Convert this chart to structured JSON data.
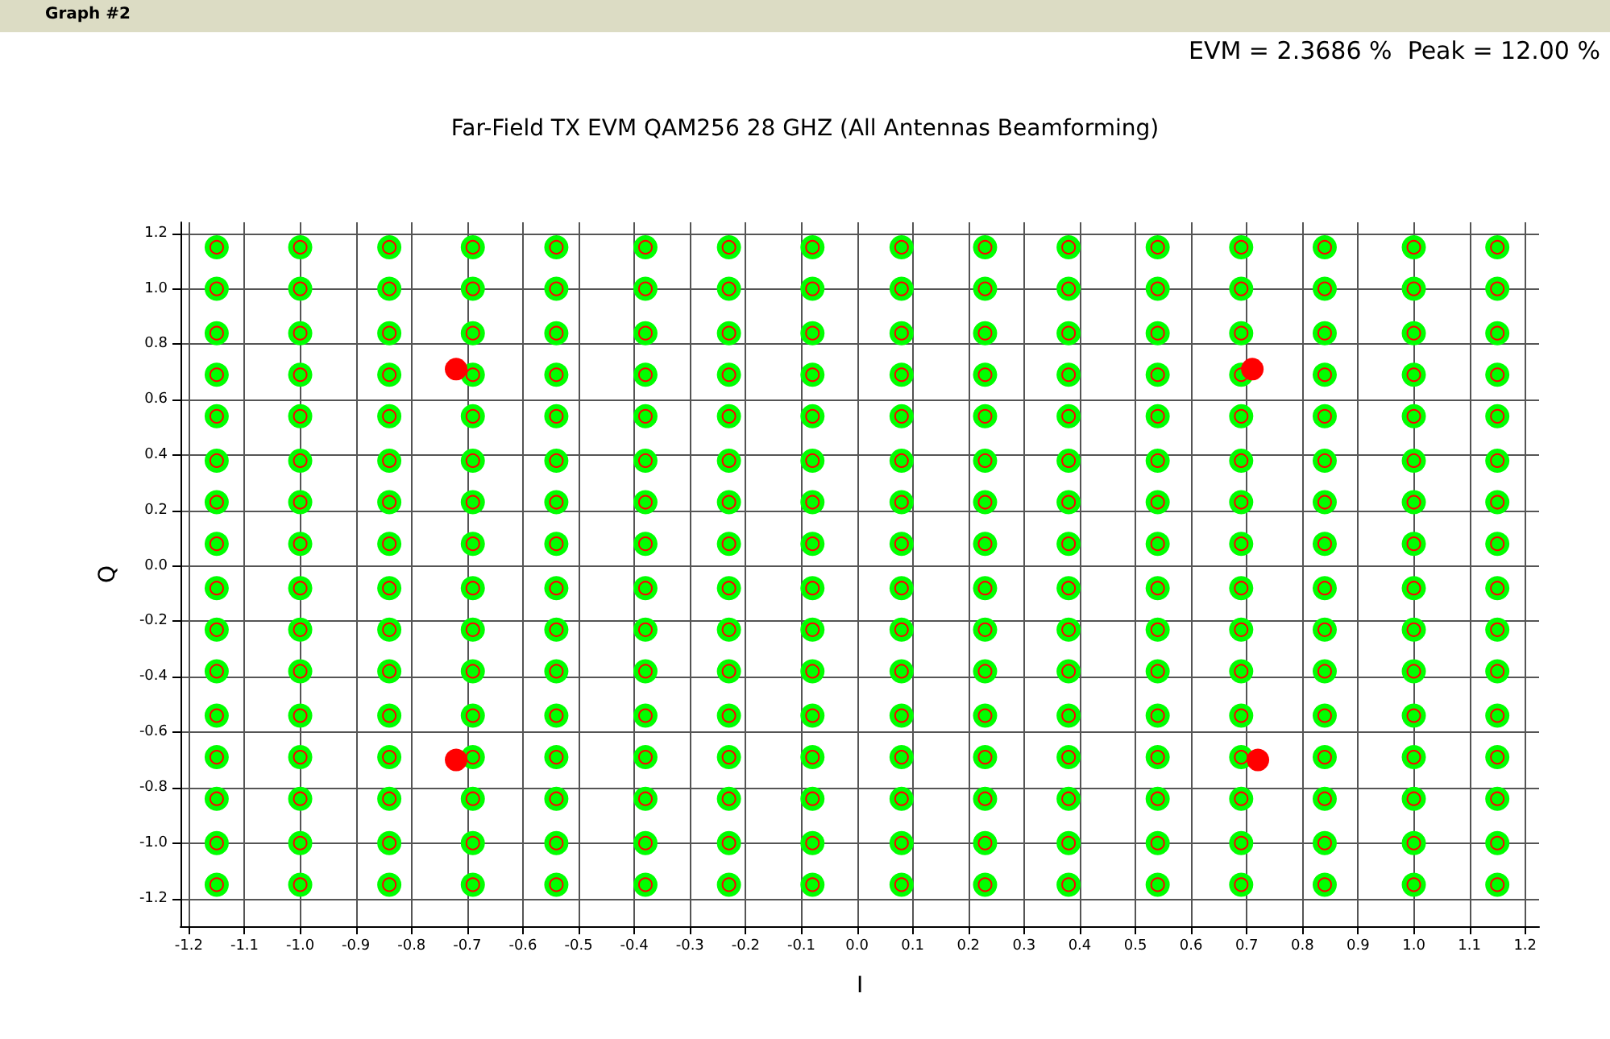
{
  "chart_data": {
    "type": "scatter",
    "title": "Far-Field TX EVM QAM256 28 GHZ (All Antennas Beamforming)",
    "xlabel": "I",
    "ylabel": "Q",
    "annotations": [
      "Graph #2",
      "EVM = 2.3686 %  Peak = 12.00 %"
    ],
    "xlim": [
      -1.215,
      1.225
    ],
    "ylim": [
      -1.3,
      1.24
    ],
    "xticks": [
      {
        "value": -1.2,
        "label": "-1.2"
      },
      {
        "value": -1.1,
        "label": "-1.1"
      },
      {
        "value": -1,
        "label": "-1.0"
      },
      {
        "value": -0.9,
        "label": "-0.9"
      },
      {
        "value": -0.8,
        "label": "-0.8"
      },
      {
        "value": -0.7,
        "label": "-0.7"
      },
      {
        "value": -0.6,
        "label": "-0.6"
      },
      {
        "value": -0.5,
        "label": "-0.5"
      },
      {
        "value": -0.4,
        "label": "-0.4"
      },
      {
        "value": -0.3,
        "label": "-0.3"
      },
      {
        "value": -0.2,
        "label": "-0.2"
      },
      {
        "value": -0.1,
        "label": "-0.1"
      },
      {
        "value": 0,
        "label": "0.0"
      },
      {
        "value": 0.1,
        "label": "0.1"
      },
      {
        "value": 0.2,
        "label": "0.2"
      },
      {
        "value": 0.3,
        "label": "0.3"
      },
      {
        "value": 0.4,
        "label": "0.4"
      },
      {
        "value": 0.5,
        "label": "0.5"
      },
      {
        "value": 0.6,
        "label": "0.6"
      },
      {
        "value": 0.7,
        "label": "0.7"
      },
      {
        "value": 0.8,
        "label": "0.8"
      },
      {
        "value": 0.9,
        "label": "0.9"
      },
      {
        "value": 1,
        "label": "1.0"
      },
      {
        "value": 1.1,
        "label": "1.1"
      },
      {
        "value": 1.2,
        "label": "1.2"
      }
    ],
    "yticks": [
      {
        "value": -1.2,
        "label": "-1.2"
      },
      {
        "value": -1,
        "label": "-1.0"
      },
      {
        "value": -0.8,
        "label": "-0.8"
      },
      {
        "value": -0.6,
        "label": "-0.6"
      },
      {
        "value": -0.4,
        "label": "-0.4"
      },
      {
        "value": -0.2,
        "label": "-0.2"
      },
      {
        "value": 0,
        "label": "0.0"
      },
      {
        "value": 0.2,
        "label": "0.2"
      },
      {
        "value": 0.4,
        "label": "0.4"
      },
      {
        "value": 0.6,
        "label": "0.6"
      },
      {
        "value": 0.8,
        "label": "0.8"
      },
      {
        "value": 1,
        "label": "1.0"
      },
      {
        "value": 1.2,
        "label": "1.2"
      }
    ],
    "grid": true,
    "marker": "circle",
    "series": [
      {
        "color": "#00ff00",
        "x": [
          -1.15,
          -1.0,
          -0.84,
          -0.69,
          -0.54,
          -0.38,
          -0.23,
          -0.08,
          0.08,
          0.23,
          0.38,
          0.54,
          0.69,
          0.84,
          1.0,
          1.15,
          -1.15,
          -1.0,
          -0.84,
          -0.69,
          -0.54,
          -0.38,
          -0.23,
          -0.08,
          0.08,
          0.23,
          0.38,
          0.54,
          0.69,
          0.84,
          1.0,
          1.15,
          -1.15,
          -1.0,
          -0.84,
          -0.69,
          -0.54,
          -0.38,
          -0.23,
          -0.08,
          0.08,
          0.23,
          0.38,
          0.54,
          0.69,
          0.84,
          1.0,
          1.15,
          -1.15,
          -1.0,
          -0.84,
          -0.69,
          -0.54,
          -0.38,
          -0.23,
          -0.08,
          0.08,
          0.23,
          0.38,
          0.54,
          0.69,
          0.84,
          1.0,
          1.15,
          -1.15,
          -1.0,
          -0.84,
          -0.69,
          -0.54,
          -0.38,
          -0.23,
          -0.08,
          0.08,
          0.23,
          0.38,
          0.54,
          0.69,
          0.84,
          1.0,
          1.15,
          -1.15,
          -1.0,
          -0.84,
          -0.69,
          -0.54,
          -0.38,
          -0.23,
          -0.08,
          0.08,
          0.23,
          0.38,
          0.54,
          0.69,
          0.84,
          1.0,
          1.15,
          -1.15,
          -1.0,
          -0.84,
          -0.69,
          -0.54,
          -0.38,
          -0.23,
          -0.08,
          0.08,
          0.23,
          0.38,
          0.54,
          0.69,
          0.84,
          1.0,
          1.15,
          -1.15,
          -1.0,
          -0.84,
          -0.69,
          -0.54,
          -0.38,
          -0.23,
          -0.08,
          0.08,
          0.23,
          0.38,
          0.54,
          0.69,
          0.84,
          1.0,
          1.15,
          -1.15,
          -1.0,
          -0.84,
          -0.69,
          -0.54,
          -0.38,
          -0.23,
          -0.08,
          0.08,
          0.23,
          0.38,
          0.54,
          0.69,
          0.84,
          1.0,
          1.15,
          -1.15,
          -1.0,
          -0.84,
          -0.69,
          -0.54,
          -0.38,
          -0.23,
          -0.08,
          0.08,
          0.23,
          0.38,
          0.54,
          0.69,
          0.84,
          1.0,
          1.15,
          -1.15,
          -1.0,
          -0.84,
          -0.69,
          -0.54,
          -0.38,
          -0.23,
          -0.08,
          0.08,
          0.23,
          0.38,
          0.54,
          0.69,
          0.84,
          1.0,
          1.15,
          -1.15,
          -1.0,
          -0.84,
          -0.69,
          -0.54,
          -0.38,
          -0.23,
          -0.08,
          0.08,
          0.23,
          0.38,
          0.54,
          0.69,
          0.84,
          1.0,
          1.15,
          -1.15,
          -1.0,
          -0.84,
          -0.69,
          -0.54,
          -0.38,
          -0.23,
          -0.08,
          0.08,
          0.23,
          0.38,
          0.54,
          0.69,
          0.84,
          1.0,
          1.15,
          -1.15,
          -1.0,
          -0.84,
          -0.69,
          -0.54,
          -0.38,
          -0.23,
          -0.08,
          0.08,
          0.23,
          0.38,
          0.54,
          0.69,
          0.84,
          1.0,
          1.15,
          -1.15,
          -1.0,
          -0.84,
          -0.69,
          -0.54,
          -0.38,
          -0.23,
          -0.08,
          0.08,
          0.23,
          0.38,
          0.54,
          0.69,
          0.84,
          1.0,
          1.15,
          -1.15,
          -1.0,
          -0.84,
          -0.69,
          -0.54,
          -0.38,
          -0.23,
          -0.08,
          0.08,
          0.23,
          0.38,
          0.54,
          0.69,
          0.84,
          1.0,
          1.15
        ],
        "values": [
          1.15,
          1.15,
          1.15,
          1.15,
          1.15,
          1.15,
          1.15,
          1.15,
          1.15,
          1.15,
          1.15,
          1.15,
          1.15,
          1.15,
          1.15,
          1.15,
          1.0,
          1.0,
          1.0,
          1.0,
          1.0,
          1.0,
          1.0,
          1.0,
          1.0,
          1.0,
          1.0,
          1.0,
          1.0,
          1.0,
          1.0,
          1.0,
          0.84,
          0.84,
          0.84,
          0.84,
          0.84,
          0.84,
          0.84,
          0.84,
          0.84,
          0.84,
          0.84,
          0.84,
          0.84,
          0.84,
          0.84,
          0.84,
          0.69,
          0.69,
          0.69,
          0.69,
          0.69,
          0.69,
          0.69,
          0.69,
          0.69,
          0.69,
          0.69,
          0.69,
          0.69,
          0.69,
          0.69,
          0.69,
          0.54,
          0.54,
          0.54,
          0.54,
          0.54,
          0.54,
          0.54,
          0.54,
          0.54,
          0.54,
          0.54,
          0.54,
          0.54,
          0.54,
          0.54,
          0.54,
          0.38,
          0.38,
          0.38,
          0.38,
          0.38,
          0.38,
          0.38,
          0.38,
          0.38,
          0.38,
          0.38,
          0.38,
          0.38,
          0.38,
          0.38,
          0.38,
          0.23,
          0.23,
          0.23,
          0.23,
          0.23,
          0.23,
          0.23,
          0.23,
          0.23,
          0.23,
          0.23,
          0.23,
          0.23,
          0.23,
          0.23,
          0.23,
          0.08,
          0.08,
          0.08,
          0.08,
          0.08,
          0.08,
          0.08,
          0.08,
          0.08,
          0.08,
          0.08,
          0.08,
          0.08,
          0.08,
          0.08,
          0.08,
          -0.08,
          -0.08,
          -0.08,
          -0.08,
          -0.08,
          -0.08,
          -0.08,
          -0.08,
          -0.08,
          -0.08,
          -0.08,
          -0.08,
          -0.08,
          -0.08,
          -0.08,
          -0.08,
          -0.23,
          -0.23,
          -0.23,
          -0.23,
          -0.23,
          -0.23,
          -0.23,
          -0.23,
          -0.23,
          -0.23,
          -0.23,
          -0.23,
          -0.23,
          -0.23,
          -0.23,
          -0.23,
          -0.38,
          -0.38,
          -0.38,
          -0.38,
          -0.38,
          -0.38,
          -0.38,
          -0.38,
          -0.38,
          -0.38,
          -0.38,
          -0.38,
          -0.38,
          -0.38,
          -0.38,
          -0.38,
          -0.54,
          -0.54,
          -0.54,
          -0.54,
          -0.54,
          -0.54,
          -0.54,
          -0.54,
          -0.54,
          -0.54,
          -0.54,
          -0.54,
          -0.54,
          -0.54,
          -0.54,
          -0.54,
          -0.69,
          -0.69,
          -0.69,
          -0.69,
          -0.69,
          -0.69,
          -0.69,
          -0.69,
          -0.69,
          -0.69,
          -0.69,
          -0.69,
          -0.69,
          -0.69,
          -0.69,
          -0.69,
          -0.84,
          -0.84,
          -0.84,
          -0.84,
          -0.84,
          -0.84,
          -0.84,
          -0.84,
          -0.84,
          -0.84,
          -0.84,
          -0.84,
          -0.84,
          -0.84,
          -0.84,
          -0.84,
          -1.0,
          -1.0,
          -1.0,
          -1.0,
          -1.0,
          -1.0,
          -1.0,
          -1.0,
          -1.0,
          -1.0,
          -1.0,
          -1.0,
          -1.0,
          -1.0,
          -1.0,
          -1.0,
          -1.15,
          -1.15,
          -1.15,
          -1.15,
          -1.15,
          -1.15,
          -1.15,
          -1.15,
          -1.15,
          -1.15,
          -1.15,
          -1.15,
          -1.15,
          -1.15,
          -1.15,
          -1.15
        ]
      },
      {
        "color": "#ff0000",
        "x": [
          -0.72,
          0.71,
          -0.72,
          0.72
        ],
        "values": [
          0.71,
          0.71,
          -0.7,
          -0.7
        ]
      },
      {
        "color": "#ff0000",
        "x": [
          -1.15,
          -1.0,
          -0.84,
          -0.69,
          -0.54,
          -0.38,
          -0.23,
          -0.08,
          0.08,
          0.23,
          0.38,
          0.54,
          0.69,
          0.84,
          1.0,
          1.15,
          -1.15,
          -1.0,
          -0.84,
          -0.69,
          -0.54,
          -0.38,
          -0.23,
          -0.08,
          0.08,
          0.23,
          0.38,
          0.54,
          0.69,
          0.84,
          1.0,
          1.15,
          -1.15,
          -1.0,
          -0.84,
          -0.69,
          -0.54,
          -0.38,
          -0.23,
          -0.08,
          0.08,
          0.23,
          0.38,
          0.54,
          0.69,
          0.84,
          1.0,
          1.15,
          -1.15,
          -1.0,
          -0.84,
          -0.69,
          -0.54,
          -0.38,
          -0.23,
          -0.08,
          0.08,
          0.23,
          0.38,
          0.54,
          0.69,
          0.84,
          1.0,
          1.15,
          -1.15,
          -1.0,
          -0.84,
          -0.69,
          -0.54,
          -0.38,
          -0.23,
          -0.08,
          0.08,
          0.23,
          0.38,
          0.54,
          0.69,
          0.84,
          1.0,
          1.15,
          -1.15,
          -1.0,
          -0.84,
          -0.69,
          -0.54,
          -0.38,
          -0.23,
          -0.08,
          0.08,
          0.23,
          0.38,
          0.54,
          0.69,
          0.84,
          1.0,
          1.15,
          -1.15,
          -1.0,
          -0.84,
          -0.69,
          -0.54,
          -0.38,
          -0.23,
          -0.08,
          0.08,
          0.23,
          0.38,
          0.54,
          0.69,
          0.84,
          1.0,
          1.15,
          -1.15,
          -1.0,
          -0.84,
          -0.69,
          -0.54,
          -0.38,
          -0.23,
          -0.08,
          0.08,
          0.23,
          0.38,
          0.54,
          0.69,
          0.84,
          1.0,
          1.15,
          -1.15,
          -1.0,
          -0.84,
          -0.69,
          -0.54,
          -0.38,
          -0.23,
          -0.08,
          0.08,
          0.23,
          0.38,
          0.54,
          0.69,
          0.84,
          1.0,
          1.15,
          -1.15,
          -1.0,
          -0.84,
          -0.69,
          -0.54,
          -0.38,
          -0.23,
          -0.08,
          0.08,
          0.23,
          0.38,
          0.54,
          0.69,
          0.84,
          1.0,
          1.15,
          -1.15,
          -1.0,
          -0.84,
          -0.69,
          -0.54,
          -0.38,
          -0.23,
          -0.08,
          0.08,
          0.23,
          0.38,
          0.54,
          0.69,
          0.84,
          1.0,
          1.15,
          -1.15,
          -1.0,
          -0.84,
          -0.69,
          -0.54,
          -0.38,
          -0.23,
          -0.08,
          0.08,
          0.23,
          0.38,
          0.54,
          0.69,
          0.84,
          1.0,
          1.15,
          -1.15,
          -1.0,
          -0.84,
          -0.69,
          -0.54,
          -0.38,
          -0.23,
          -0.08,
          0.08,
          0.23,
          0.38,
          0.54,
          0.69,
          0.84,
          1.0,
          1.15,
          -1.15,
          -1.0,
          -0.84,
          -0.69,
          -0.54,
          -0.38,
          -0.23,
          -0.08,
          0.08,
          0.23,
          0.38,
          0.54,
          0.69,
          0.84,
          1.0,
          1.15,
          -1.15,
          -1.0,
          -0.84,
          -0.69,
          -0.54,
          -0.38,
          -0.23,
          -0.08,
          0.08,
          0.23,
          0.38,
          0.54,
          0.69,
          0.84,
          1.0,
          1.15,
          -1.15,
          -1.0,
          -0.84,
          -0.69,
          -0.54,
          -0.38,
          -0.23,
          -0.08,
          0.08,
          0.23,
          0.38,
          0.54,
          0.69,
          0.84,
          1.0,
          1.15
        ],
        "values": [
          1.15,
          1.15,
          1.15,
          1.15,
          1.15,
          1.15,
          1.15,
          1.15,
          1.15,
          1.15,
          1.15,
          1.15,
          1.15,
          1.15,
          1.15,
          1.15,
          1.0,
          1.0,
          1.0,
          1.0,
          1.0,
          1.0,
          1.0,
          1.0,
          1.0,
          1.0,
          1.0,
          1.0,
          1.0,
          1.0,
          1.0,
          1.0,
          0.84,
          0.84,
          0.84,
          0.84,
          0.84,
          0.84,
          0.84,
          0.84,
          0.84,
          0.84,
          0.84,
          0.84,
          0.84,
          0.84,
          0.84,
          0.84,
          0.69,
          0.69,
          0.69,
          0.69,
          0.69,
          0.69,
          0.69,
          0.69,
          0.69,
          0.69,
          0.69,
          0.69,
          0.69,
          0.69,
          0.69,
          0.69,
          0.54,
          0.54,
          0.54,
          0.54,
          0.54,
          0.54,
          0.54,
          0.54,
          0.54,
          0.54,
          0.54,
          0.54,
          0.54,
          0.54,
          0.54,
          0.54,
          0.38,
          0.38,
          0.38,
          0.38,
          0.38,
          0.38,
          0.38,
          0.38,
          0.38,
          0.38,
          0.38,
          0.38,
          0.38,
          0.38,
          0.38,
          0.38,
          0.23,
          0.23,
          0.23,
          0.23,
          0.23,
          0.23,
          0.23,
          0.23,
          0.23,
          0.23,
          0.23,
          0.23,
          0.23,
          0.23,
          0.23,
          0.23,
          0.08,
          0.08,
          0.08,
          0.08,
          0.08,
          0.08,
          0.08,
          0.08,
          0.08,
          0.08,
          0.08,
          0.08,
          0.08,
          0.08,
          0.08,
          0.08,
          -0.08,
          -0.08,
          -0.08,
          -0.08,
          -0.08,
          -0.08,
          -0.08,
          -0.08,
          -0.08,
          -0.08,
          -0.08,
          -0.08,
          -0.08,
          -0.08,
          -0.08,
          -0.08,
          -0.23,
          -0.23,
          -0.23,
          -0.23,
          -0.23,
          -0.23,
          -0.23,
          -0.23,
          -0.23,
          -0.23,
          -0.23,
          -0.23,
          -0.23,
          -0.23,
          -0.23,
          -0.23,
          -0.38,
          -0.38,
          -0.38,
          -0.38,
          -0.38,
          -0.38,
          -0.38,
          -0.38,
          -0.38,
          -0.38,
          -0.38,
          -0.38,
          -0.38,
          -0.38,
          -0.38,
          -0.38,
          -0.54,
          -0.54,
          -0.54,
          -0.54,
          -0.54,
          -0.54,
          -0.54,
          -0.54,
          -0.54,
          -0.54,
          -0.54,
          -0.54,
          -0.54,
          -0.54,
          -0.54,
          -0.54,
          -0.69,
          -0.69,
          -0.69,
          -0.69,
          -0.69,
          -0.69,
          -0.69,
          -0.69,
          -0.69,
          -0.69,
          -0.69,
          -0.69,
          -0.69,
          -0.69,
          -0.69,
          -0.69,
          -0.84,
          -0.84,
          -0.84,
          -0.84,
          -0.84,
          -0.84,
          -0.84,
          -0.84,
          -0.84,
          -0.84,
          -0.84,
          -0.84,
          -0.84,
          -0.84,
          -0.84,
          -0.84,
          -1.0,
          -1.0,
          -1.0,
          -1.0,
          -1.0,
          -1.0,
          -1.0,
          -1.0,
          -1.0,
          -1.0,
          -1.0,
          -1.0,
          -1.0,
          -1.0,
          -1.0,
          -1.0,
          -1.15,
          -1.15,
          -1.15,
          -1.15,
          -1.15,
          -1.15,
          -1.15,
          -1.15,
          -1.15,
          -1.15,
          -1.15,
          -1.15,
          -1.15,
          -1.15,
          -1.15,
          -1.15
        ]
      }
    ]
  }
}
